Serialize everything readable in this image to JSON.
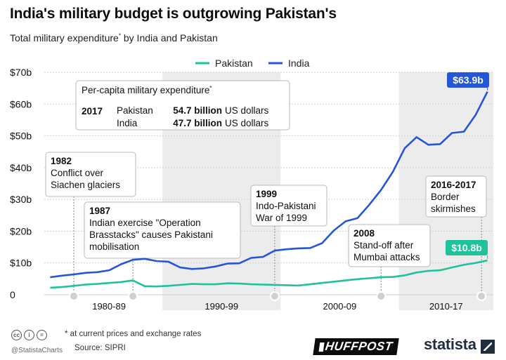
{
  "title": "India's military budget is outgrowing Pakistan's",
  "subtitle": "Total military expenditure",
  "subtitle_mark": "*",
  "subtitle_rest": " by India and Pakistan",
  "chart_data": {
    "type": "line",
    "x": [
      1980,
      1981,
      1982,
      1983,
      1984,
      1985,
      1986,
      1987,
      1988,
      1989,
      1990,
      1991,
      1992,
      1993,
      1994,
      1995,
      1996,
      1997,
      1998,
      1999,
      2000,
      2001,
      2002,
      2003,
      2004,
      2005,
      2006,
      2007,
      2008,
      2009,
      2010,
      2011,
      2012,
      2013,
      2014,
      2015,
      2016,
      2017
    ],
    "series": [
      {
        "name": "Pakistan",
        "color": "#1fc29a",
        "values": [
          2.2,
          2.4,
          2.8,
          3.2,
          3.4,
          3.7,
          4.0,
          4.5,
          2.7,
          2.6,
          2.8,
          3.1,
          3.4,
          3.3,
          3.3,
          3.6,
          3.5,
          3.3,
          3.2,
          3.1,
          3.0,
          2.9,
          3.3,
          3.7,
          4.1,
          4.5,
          4.9,
          5.2,
          5.5,
          5.6,
          6.1,
          7.0,
          7.5,
          7.7,
          8.6,
          9.4,
          10.0,
          10.8
        ]
      },
      {
        "name": "India",
        "color": "#2356d8",
        "values": [
          5.5,
          6.0,
          6.4,
          6.9,
          7.1,
          7.7,
          9.6,
          11.0,
          11.3,
          10.6,
          10.4,
          8.6,
          8.1,
          8.3,
          8.9,
          9.8,
          9.9,
          11.6,
          11.9,
          13.9,
          14.3,
          14.6,
          14.7,
          16.2,
          20.2,
          23.1,
          24.1,
          28.3,
          33.0,
          38.7,
          46.1,
          49.6,
          47.2,
          47.4,
          50.9,
          51.3,
          56.6,
          63.9
        ]
      }
    ],
    "ylim": [
      0,
      70
    ],
    "xlim": [
      1979.5,
      2017.5
    ],
    "y_ticks": [
      0,
      10,
      20,
      30,
      40,
      50,
      60,
      70
    ],
    "y_tick_labels": [
      "0",
      "$10b",
      "$20b",
      "$30b",
      "$40b",
      "$50b",
      "$60b",
      "$70b"
    ],
    "decades": [
      {
        "label": "1980-89",
        "start": 1979.5,
        "end": 1989.5,
        "shaded": false
      },
      {
        "label": "1990-99",
        "start": 1989.5,
        "end": 1999.5,
        "shaded": true
      },
      {
        "label": "2000-09",
        "start": 1999.5,
        "end": 2009.5,
        "shaded": false
      },
      {
        "label": "2010-17",
        "start": 2009.5,
        "end": 2017.5,
        "shaded": true
      }
    ],
    "legend_position": "top",
    "grid": true,
    "end_labels": [
      {
        "series": "India",
        "text": "$63.9b"
      },
      {
        "series": "Pakistan",
        "text": "$10.8b"
      }
    ],
    "events": [
      {
        "year": 1982,
        "lines": [
          "1982",
          "Conflict over",
          "Siachen glaciers"
        ]
      },
      {
        "year": 1987,
        "lines": [
          "1987",
          "Indian exercise \"Operation",
          "Brasstacks\" causes Pakistani",
          "mobilisation"
        ]
      },
      {
        "year": 1999,
        "lines": [
          "1999",
          "Indo-Pakistani",
          "War of 1999"
        ]
      },
      {
        "year": 2008,
        "lines": [
          "2008",
          "Stand-off after",
          "Mumbai attacks"
        ]
      },
      {
        "year": 2016.5,
        "lines": [
          "2016-2017",
          "Border",
          "skirmishes"
        ]
      }
    ],
    "info_box": {
      "title": "Per-capita military expenditure",
      "title_mark": "*",
      "year": "2017",
      "rows": [
        {
          "country": "Pakistan",
          "value": "54.7 billion",
          "unit": "US dollars"
        },
        {
          "country": "India",
          "value": "47.7 billion",
          "unit": "US dollars"
        }
      ]
    }
  },
  "footer": {
    "footnote": "* at current prices and exchange rates",
    "source": "Source: SIPRI",
    "handle": "@StatistaCharts",
    "cc_icons": [
      "cc",
      "i",
      "="
    ],
    "huffpost": "▮HUFFPOST",
    "statista": "statista"
  }
}
